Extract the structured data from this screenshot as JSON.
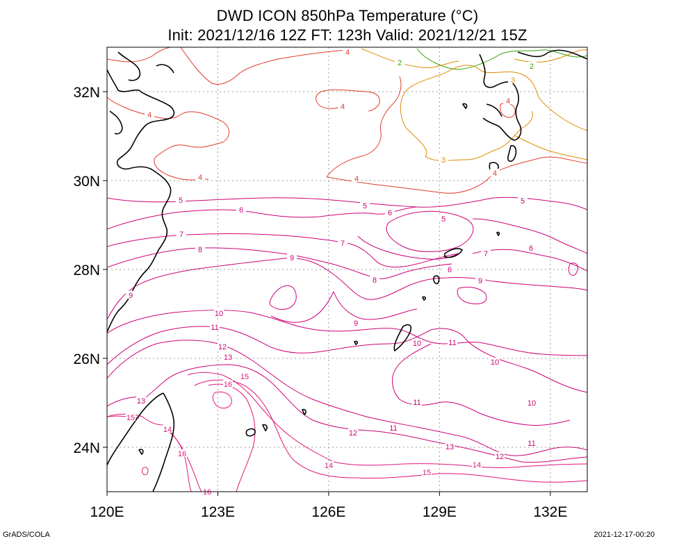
{
  "header": {
    "title": "DWD ICON 850hPa Temperature (°C)",
    "subtitle": "Init: 2021/12/16 12Z  FT: 123h  Valid: 2021/12/21 15Z"
  },
  "footer": {
    "left": "GrADS/COLA",
    "right": "2021-12-17-00:20"
  },
  "map": {
    "lon_range": [
      120,
      133
    ],
    "lat_range": [
      23,
      33
    ],
    "x_ticks": [
      {
        "value": 120,
        "label": "120E"
      },
      {
        "value": 123,
        "label": "123E"
      },
      {
        "value": 126,
        "label": "126E"
      },
      {
        "value": 129,
        "label": "129E"
      },
      {
        "value": 132,
        "label": "132E"
      }
    ],
    "y_ticks": [
      {
        "value": 24,
        "label": "24N"
      },
      {
        "value": 26,
        "label": "26N"
      },
      {
        "value": 28,
        "label": "28N"
      },
      {
        "value": 30,
        "label": "30N"
      },
      {
        "value": 32,
        "label": "32N"
      }
    ],
    "grid": "dotted",
    "contour_colors": {
      "2": "#2ea300",
      "3": "#e08a00",
      "4": "#e03a2a",
      "5": "#cc0077",
      "6": "#cc0077",
      "7": "#cc0077",
      "8": "#cc0077",
      "9": "#cc0077",
      "10": "#cc0077",
      "11": "#cc0077",
      "12": "#cc0077",
      "13": "#cc0077",
      "14": "#e0147a",
      "15": "#e0147a",
      "16": "#e0147a"
    },
    "coast_color": "#000000"
  }
}
